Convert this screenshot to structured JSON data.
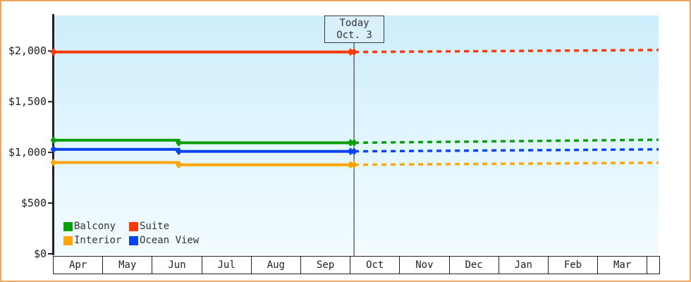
{
  "page": {
    "border_color": "#eda55f",
    "plot_bg_top": "#cdeefb",
    "plot_bg_bottom": "#f3fcff",
    "axis_color": "#222222",
    "today_line_color": "#444444"
  },
  "today_box": {
    "line1": "Today",
    "line2": "Oct. 3"
  },
  "legend": {
    "items": [
      {
        "label": "Balcony",
        "color": "#0a9e0a"
      },
      {
        "label": "Suite",
        "color": "#fa390a"
      },
      {
        "label": "Interior",
        "color": "#ffa40a"
      },
      {
        "label": "Ocean View",
        "color": "#0a44f0"
      }
    ]
  },
  "chart_data": {
    "type": "line",
    "x_categories": [
      "Apr",
      "May",
      "Jun",
      "Jul",
      "Aug",
      "Sep",
      "Oct",
      "Nov",
      "Dec",
      "Jan",
      "Feb",
      "Mar"
    ],
    "xlim_months": [
      0,
      12.23
    ],
    "ylim": [
      0,
      2350
    ],
    "grid": false,
    "legend_position": "bottom-left inside plot",
    "y_ticks": [
      {
        "value": 0,
        "label": "$0"
      },
      {
        "value": 500,
        "label": "$500"
      },
      {
        "value": 1000,
        "label": "$1,000"
      },
      {
        "value": 1500,
        "label": "$1,500"
      },
      {
        "value": 2000,
        "label": "$2,000"
      }
    ],
    "today": {
      "x": 6.07,
      "line1": "Today",
      "line2": "Oct. 3"
    },
    "series": [
      {
        "name": "Suite",
        "color": "#fa390a",
        "history": [
          {
            "x": 0,
            "price": 1990
          },
          {
            "x": 6.07,
            "price": 1990,
            "today": true
          }
        ],
        "forecast": [
          {
            "x": 6.07,
            "price": 1990
          },
          {
            "x": 12.23,
            "price": 2010
          }
        ]
      },
      {
        "name": "Balcony",
        "color": "#0a9e0a",
        "history": [
          {
            "x": 0,
            "price": 1120
          },
          {
            "x": 2.53,
            "price": 1095
          },
          {
            "x": 6.07,
            "price": 1095,
            "today": true
          }
        ],
        "forecast": [
          {
            "x": 6.07,
            "price": 1095
          },
          {
            "x": 12.23,
            "price": 1125
          }
        ]
      },
      {
        "name": "Ocean View",
        "color": "#0a44f0",
        "history": [
          {
            "x": 0,
            "price": 1030
          },
          {
            "x": 2.53,
            "price": 1010
          },
          {
            "x": 6.07,
            "price": 1010,
            "today": true
          }
        ],
        "forecast": [
          {
            "x": 6.07,
            "price": 1010
          },
          {
            "x": 12.23,
            "price": 1030
          }
        ]
      },
      {
        "name": "Interior",
        "color": "#ffa40a",
        "history": [
          {
            "x": 0,
            "price": 900
          },
          {
            "x": 2.53,
            "price": 878
          },
          {
            "x": 6.07,
            "price": 878,
            "today": true
          }
        ],
        "forecast": [
          {
            "x": 6.07,
            "price": 878
          },
          {
            "x": 12.23,
            "price": 898
          }
        ]
      }
    ]
  }
}
